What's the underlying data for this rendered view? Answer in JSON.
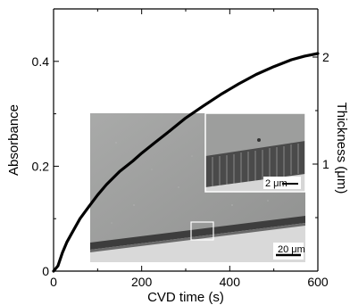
{
  "chart_data": {
    "type": "line",
    "xlabel": "CVD time (s)",
    "ylabel": "Absorbance",
    "y2label": "Thickness (μm)",
    "xlim": [
      0,
      600
    ],
    "ylim": [
      0,
      0.5
    ],
    "y2lim": [
      0,
      2.45
    ],
    "x_ticks": [
      0,
      200,
      400,
      600
    ],
    "x_tick_labels": [
      "0",
      "200",
      "400",
      "600"
    ],
    "y_ticks": [
      0,
      0.2,
      0.4
    ],
    "y_tick_labels": [
      "0",
      "0.2",
      "0.4"
    ],
    "y2_ticks": [
      1,
      2
    ],
    "y2_tick_labels": [
      "1",
      "2"
    ],
    "series": [
      {
        "x": [
          0,
          10,
          20,
          30,
          40,
          60,
          80,
          100,
          120,
          150,
          180,
          200,
          230,
          260,
          300,
          340,
          380,
          420,
          460,
          500,
          540,
          570,
          600
        ],
        "y": [
          0,
          0.01,
          0.035,
          0.055,
          0.07,
          0.1,
          0.123,
          0.145,
          0.165,
          0.19,
          0.21,
          0.225,
          0.245,
          0.265,
          0.292,
          0.315,
          0.337,
          0.357,
          0.375,
          0.39,
          0.403,
          0.41,
          0.415
        ]
      }
    ],
    "grid": false
  },
  "inset": {
    "main_scale_label": "20 μm",
    "zoom_scale_label": "2 μm"
  }
}
